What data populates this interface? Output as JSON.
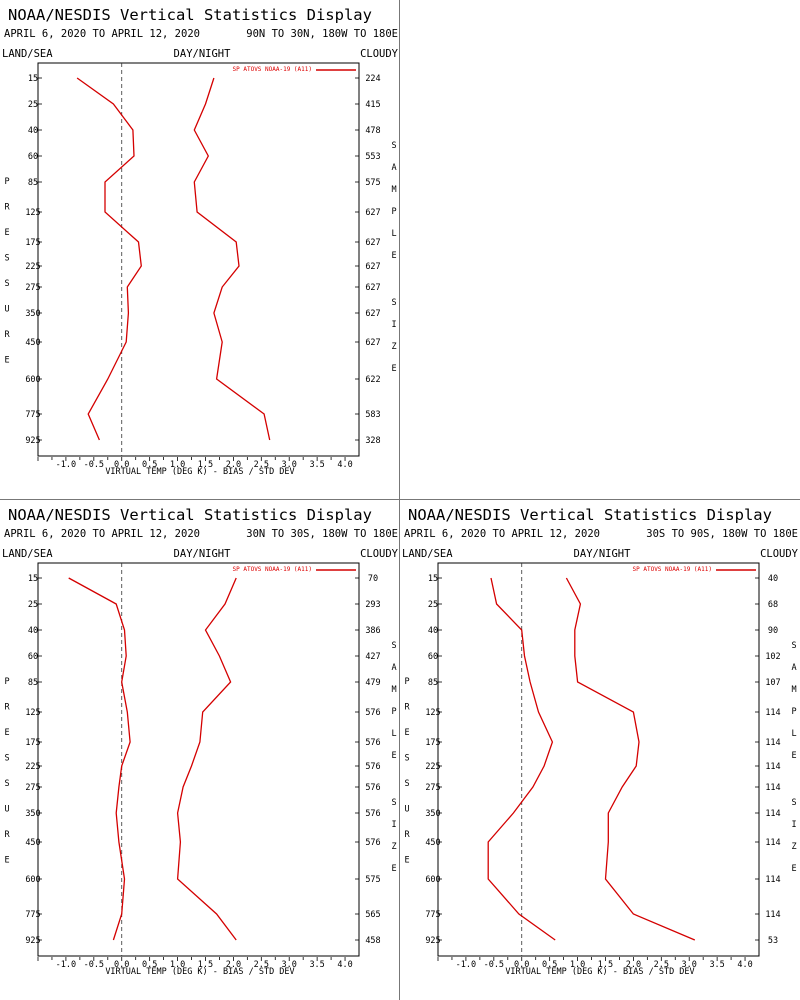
{
  "page": {
    "title": "NOAA/NESDIS Vertical Statistics Display",
    "labels": {
      "land_sea": "LAND/SEA",
      "day_night": "DAY/NIGHT",
      "cloudy": "CLOUDY",
      "xlabel": "VIRTUAL TEMP (DEG K) - BIAS / STD DEV",
      "ylabel": "PRESSURE",
      "ylabel_right": "SAMPLE SIZE"
    },
    "legend": "SP ATOVS NOAA-19 (A11)",
    "series_color": "#d40000",
    "empty_panel": "top-right"
  },
  "chart_data": [
    {
      "type": "line",
      "title": "NOAA/NESDIS Vertical Statistics Display",
      "date_range": "APRIL 6, 2020 TO APRIL 12, 2020",
      "region": "90N TO 30N, 180W TO 180E",
      "pressure_levels": [
        15,
        25,
        40,
        60,
        85,
        125,
        175,
        225,
        275,
        350,
        450,
        600,
        775,
        925
      ],
      "sample_size": [
        224,
        415,
        478,
        553,
        575,
        627,
        627,
        627,
        627,
        627,
        627,
        622,
        583,
        328
      ],
      "bias": [
        -0.8,
        -0.15,
        0.2,
        0.22,
        -0.3,
        -0.3,
        0.3,
        0.35,
        0.1,
        0.12,
        0.08,
        -0.25,
        -0.6,
        -0.4
      ],
      "std_dev": [
        1.65,
        1.5,
        1.3,
        1.55,
        1.3,
        1.35,
        2.05,
        2.1,
        1.8,
        1.65,
        1.8,
        1.7,
        2.55,
        2.65
      ],
      "xlim": [
        -1.5,
        4.25
      ],
      "xticks": [
        "-1.0",
        "-0.5",
        "0.0",
        "0.5",
        "1.0",
        "1.5",
        "2.0",
        "2.5",
        "3.0",
        "3.5",
        "4.0"
      ]
    },
    {
      "type": "line",
      "title": "NOAA/NESDIS Vertical Statistics Display",
      "date_range": "APRIL 6, 2020 TO APRIL 12, 2020",
      "region": "30N TO 30S, 180W TO 180E",
      "pressure_levels": [
        15,
        25,
        40,
        60,
        85,
        125,
        175,
        225,
        275,
        350,
        450,
        600,
        775,
        925
      ],
      "sample_size": [
        70,
        293,
        386,
        427,
        479,
        576,
        576,
        576,
        576,
        576,
        576,
        575,
        565,
        458
      ],
      "bias": [
        -0.95,
        -0.1,
        0.05,
        0.08,
        0.0,
        0.1,
        0.15,
        0.0,
        -0.05,
        -0.1,
        -0.05,
        0.05,
        0.0,
        -0.15
      ],
      "std_dev": [
        2.05,
        1.85,
        1.5,
        1.75,
        1.95,
        1.45,
        1.4,
        1.25,
        1.1,
        1.0,
        1.05,
        1.0,
        1.7,
        2.05
      ],
      "xlim": [
        -1.5,
        4.25
      ],
      "xticks": [
        "-1.0",
        "-0.5",
        "0.0",
        "0.5",
        "1.0",
        "1.5",
        "2.0",
        "2.5",
        "3.0",
        "3.5",
        "4.0"
      ]
    },
    {
      "type": "line",
      "title": "NOAA/NESDIS Vertical Statistics Display",
      "date_range": "APRIL 6, 2020 TO APRIL 12, 2020",
      "region": "30S TO 90S, 180W TO 180E",
      "pressure_levels": [
        15,
        25,
        40,
        60,
        85,
        125,
        175,
        225,
        275,
        350,
        450,
        600,
        775,
        925
      ],
      "sample_size": [
        40,
        68,
        90,
        102,
        107,
        114,
        114,
        114,
        114,
        114,
        114,
        114,
        114,
        53
      ],
      "bias": [
        -0.55,
        -0.45,
        0.0,
        0.05,
        0.15,
        0.3,
        0.55,
        0.4,
        0.2,
        -0.15,
        -0.6,
        -0.6,
        -0.05,
        0.6
      ],
      "std_dev": [
        0.8,
        1.05,
        0.95,
        0.95,
        1.0,
        2.0,
        2.1,
        2.05,
        1.8,
        1.55,
        1.55,
        1.5,
        2.0,
        3.1
      ],
      "xlim": [
        -1.5,
        4.25
      ],
      "xticks": [
        "-1.0",
        "-0.5",
        "0.0",
        "0.5",
        "1.0",
        "1.5",
        "2.0",
        "2.5",
        "3.0",
        "3.5",
        "4.0"
      ]
    }
  ]
}
